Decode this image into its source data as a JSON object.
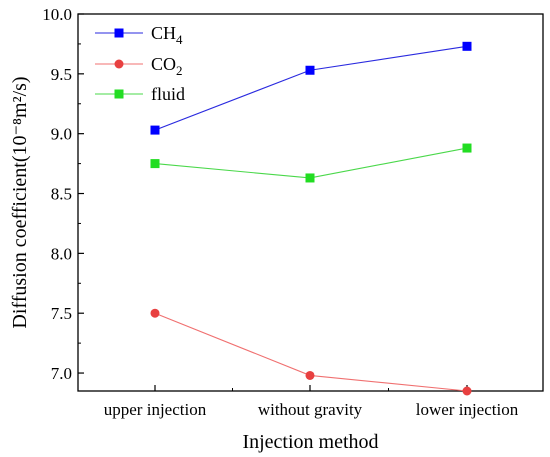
{
  "chart_data": {
    "type": "line",
    "categories": [
      "upper injection",
      "without gravity",
      "lower injection"
    ],
    "series": [
      {
        "name": "CH4",
        "name_base": "CH",
        "name_sub": "4",
        "color": "#2a2adf",
        "marker_color": "#0000ff",
        "marker": "square",
        "values": [
          9.03,
          9.53,
          9.73
        ]
      },
      {
        "name": "CO2",
        "name_base": "CO",
        "name_sub": "2",
        "color": "#f07070",
        "marker_color": "#e84040",
        "marker": "circle",
        "values": [
          7.5,
          6.98,
          6.85
        ]
      },
      {
        "name": "fluid",
        "name_base": "fluid",
        "name_sub": "",
        "color": "#4ad84a",
        "marker_color": "#22dd22",
        "marker": "square",
        "values": [
          8.75,
          8.63,
          8.88
        ]
      }
    ],
    "xlabel": "Injection method",
    "ylabel": "Diffusion coefficient(10⁻⁸m²/s)",
    "ylim": [
      6.85,
      10.0
    ],
    "yticks": [
      "7.0",
      "7.5",
      "8.0",
      "8.5",
      "9.0",
      "9.5",
      "10.0"
    ],
    "grid": false,
    "legend_position": "top-left"
  }
}
